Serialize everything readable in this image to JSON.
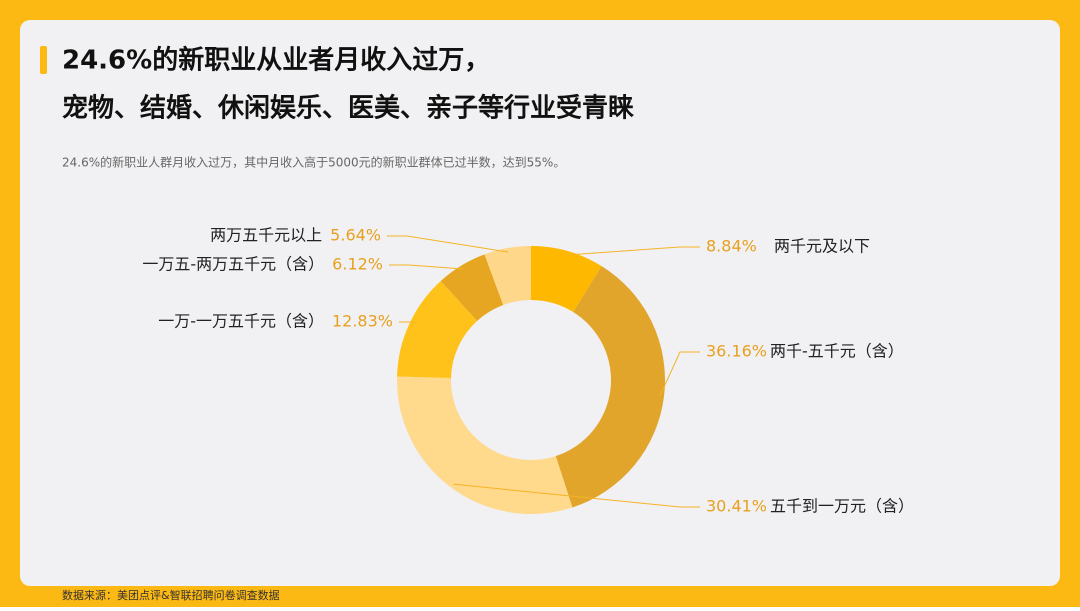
{
  "header": {
    "title_lines": [
      "24.6%的新职业从业者月收入过万，",
      "宠物、结婚、休闲娱乐、医美、亲子等行业受青睐"
    ],
    "subtitle": "24.6%的新职业人群月收入过万，其中月收入高于5000元的新职业群体已过半数，达到55%。"
  },
  "chart_data": {
    "type": "donut",
    "categories": [
      "两千元及以下",
      "两千-五千元（含）",
      "五千到一万元（含）",
      "一万-一万五千元（含）",
      "一万五-两万五千元（含）",
      "两万五千元以上"
    ],
    "values": [
      8.84,
      36.16,
      30.41,
      12.83,
      6.12,
      5.64
    ],
    "value_labels": [
      "8.84%",
      "36.16%",
      "30.41%",
      "12.83%",
      "6.12%",
      "5.64%"
    ],
    "colors": [
      "#FFB800",
      "#E2A52B",
      "#FFD98C",
      "#FFC21A",
      "#E6A622",
      "#FFD78A"
    ]
  },
  "footer": {
    "source": "数据来源：美团点评&智联招聘问卷调查数据"
  }
}
